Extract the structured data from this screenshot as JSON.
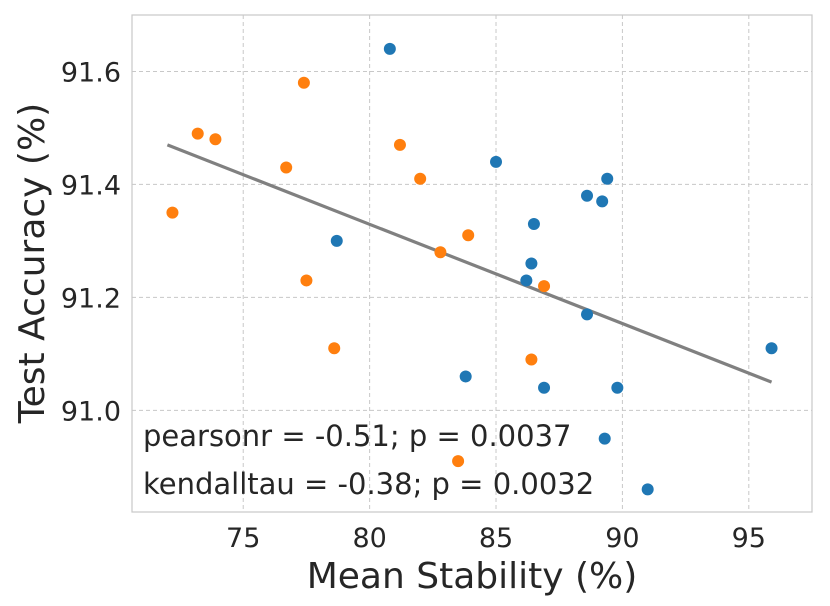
{
  "chart_data": {
    "type": "scatter",
    "title": "",
    "xlabel": "Mean Stability (%)",
    "ylabel": "Test Accuracy (%)",
    "xlim": [
      70.6,
      97.5
    ],
    "ylim": [
      90.82,
      91.7
    ],
    "xticks": [
      75,
      80,
      85,
      90,
      95
    ],
    "yticks": [
      91.0,
      91.2,
      91.4,
      91.6
    ],
    "xtick_labels": [
      "75",
      "80",
      "85",
      "90",
      "95"
    ],
    "ytick_labels": [
      "91.0",
      "91.2",
      "91.4",
      "91.6"
    ],
    "grid": true,
    "series": [
      {
        "name": "blue",
        "color": "#1f77b4",
        "points": [
          {
            "x": 80.8,
            "y": 91.64
          },
          {
            "x": 85.0,
            "y": 91.44
          },
          {
            "x": 89.4,
            "y": 91.41
          },
          {
            "x": 88.6,
            "y": 91.38
          },
          {
            "x": 89.2,
            "y": 91.37
          },
          {
            "x": 86.5,
            "y": 91.33
          },
          {
            "x": 78.7,
            "y": 91.3
          },
          {
            "x": 86.4,
            "y": 91.26
          },
          {
            "x": 86.2,
            "y": 91.23
          },
          {
            "x": 88.6,
            "y": 91.17
          },
          {
            "x": 95.9,
            "y": 91.11
          },
          {
            "x": 83.8,
            "y": 91.06
          },
          {
            "x": 86.9,
            "y": 91.04
          },
          {
            "x": 89.8,
            "y": 91.04
          },
          {
            "x": 89.3,
            "y": 90.95
          },
          {
            "x": 91.0,
            "y": 90.86
          }
        ]
      },
      {
        "name": "orange",
        "color": "#ff7f0e",
        "points": [
          {
            "x": 77.4,
            "y": 91.58
          },
          {
            "x": 73.2,
            "y": 91.49
          },
          {
            "x": 73.9,
            "y": 91.48
          },
          {
            "x": 81.2,
            "y": 91.47
          },
          {
            "x": 76.7,
            "y": 91.43
          },
          {
            "x": 82.0,
            "y": 91.41
          },
          {
            "x": 72.2,
            "y": 91.35
          },
          {
            "x": 83.9,
            "y": 91.31
          },
          {
            "x": 82.8,
            "y": 91.28
          },
          {
            "x": 77.5,
            "y": 91.23
          },
          {
            "x": 86.9,
            "y": 91.22
          },
          {
            "x": 78.6,
            "y": 91.11
          },
          {
            "x": 86.4,
            "y": 91.09
          },
          {
            "x": 83.5,
            "y": 90.91
          }
        ]
      }
    ],
    "fit_line": {
      "color": "#808080",
      "x": [
        72.0,
        95.9
      ],
      "y": [
        91.47,
        91.05
      ]
    },
    "annotations": [
      "pearsonr = -0.51; p = 0.0037",
      "kendalltau = -0.38; p = 0.0032"
    ]
  }
}
